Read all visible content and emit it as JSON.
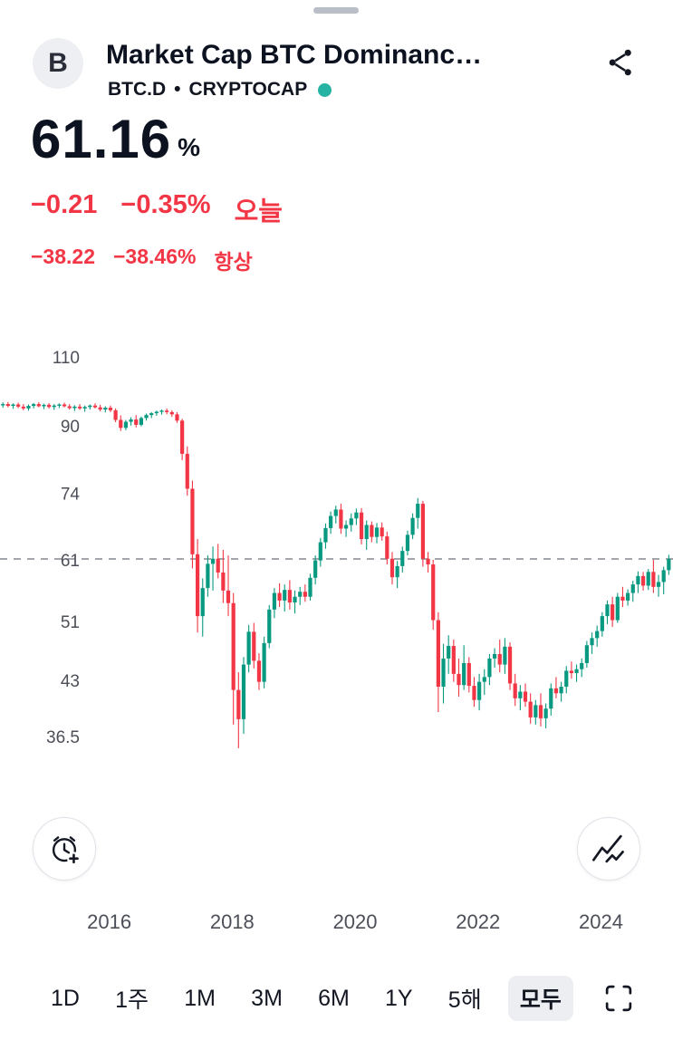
{
  "header": {
    "logo_letter": "B",
    "title": "Market Cap BTC Dominanc…",
    "symbol": "BTC.D",
    "separator": "•",
    "exchange": "CRYPTOCAP",
    "status_dot_color": "#26b3a3",
    "share_icon": "share-nodes-icon"
  },
  "quote": {
    "value": "61.16",
    "unit": "%",
    "change_color": "#f23645",
    "today": {
      "change": "−0.21",
      "change_pct": "−0.35%",
      "label": "오늘"
    },
    "alltime": {
      "change": "−38.22",
      "change_pct": "−38.46%",
      "label": "항상"
    }
  },
  "chart_data": {
    "type": "candlestick",
    "symbol": "BTC.D",
    "scale": "log",
    "interval_months": 1,
    "start_month": "2014-04",
    "y_ticks": [
      110,
      90,
      74,
      61,
      51,
      43,
      36.5
    ],
    "x_ticks": [
      2016,
      2018,
      2020,
      2022,
      2024
    ],
    "priceline": 61.16,
    "up_color": "#089981",
    "down_color": "#f23645",
    "candles": [
      [
        95.6,
        96.4,
        94.9,
        95.9
      ],
      [
        95.9,
        96.5,
        95.0,
        95.4
      ],
      [
        95.4,
        96.1,
        94.6,
        95.8
      ],
      [
        95.8,
        96.3,
        94.8,
        95.2
      ],
      [
        95.2,
        95.9,
        94.2,
        94.7
      ],
      [
        94.7,
        95.8,
        94.1,
        95.4
      ],
      [
        95.4,
        96.2,
        94.7,
        95.9
      ],
      [
        95.9,
        96.4,
        95.0,
        95.3
      ],
      [
        95.3,
        96.0,
        94.5,
        95.7
      ],
      [
        95.7,
        96.2,
        94.7,
        95.1
      ],
      [
        95.1,
        95.9,
        94.3,
        95.5
      ],
      [
        95.5,
        96.1,
        94.8,
        95.8
      ],
      [
        95.8,
        96.3,
        95.0,
        95.3
      ],
      [
        95.3,
        95.9,
        94.4,
        94.8
      ],
      [
        94.8,
        95.6,
        94.0,
        95.2
      ],
      [
        95.2,
        95.9,
        94.3,
        94.7
      ],
      [
        94.7,
        95.5,
        93.8,
        95.1
      ],
      [
        95.1,
        95.8,
        94.4,
        95.5
      ],
      [
        95.5,
        96.1,
        94.7,
        95.0
      ],
      [
        95.0,
        95.7,
        93.9,
        94.4
      ],
      [
        94.4,
        95.3,
        93.6,
        94.9
      ],
      [
        94.9,
        95.5,
        93.7,
        94.2
      ],
      [
        94.2,
        94.7,
        91.0,
        91.6
      ],
      [
        91.6,
        92.8,
        88.7,
        89.5
      ],
      [
        89.5,
        91.6,
        88.9,
        91.1
      ],
      [
        91.1,
        92.3,
        90.1,
        91.7
      ],
      [
        91.7,
        92.9,
        89.6,
        90.3
      ],
      [
        90.3,
        92.5,
        89.9,
        92.1
      ],
      [
        92.1,
        93.3,
        91.4,
        92.9
      ],
      [
        92.9,
        93.7,
        92.1,
        93.4
      ],
      [
        93.4,
        94.1,
        92.7,
        93.8
      ],
      [
        93.8,
        94.4,
        93.0,
        94.1
      ],
      [
        94.1,
        94.7,
        93.1,
        93.7
      ],
      [
        93.7,
        94.2,
        92.4,
        93.1
      ],
      [
        93.1,
        93.7,
        90.8,
        91.4
      ],
      [
        91.4,
        91.9,
        81.5,
        83.0
      ],
      [
        83.0,
        84.8,
        73.5,
        75.0
      ],
      [
        75.0,
        76.8,
        59.5,
        62.0
      ],
      [
        62.0,
        64.8,
        49.4,
        51.8
      ],
      [
        51.8,
        57.8,
        48.8,
        56.2
      ],
      [
        56.2,
        61.8,
        54.8,
        60.3
      ],
      [
        60.3,
        63.4,
        55.8,
        61.2
      ],
      [
        61.2,
        63.9,
        57.8,
        58.8
      ],
      [
        58.8,
        62.8,
        53.8,
        55.8
      ],
      [
        55.8,
        61.8,
        51.8,
        53.8
      ],
      [
        53.8,
        55.4,
        37.8,
        41.8
      ],
      [
        41.8,
        44.0,
        35.3,
        38.4
      ],
      [
        38.4,
        46.0,
        36.8,
        45.0
      ],
      [
        45.0,
        50.5,
        44.0,
        49.5
      ],
      [
        49.5,
        50.8,
        44.5,
        45.5
      ],
      [
        45.5,
        46.5,
        41.8,
        42.8
      ],
      [
        42.8,
        48.8,
        42.0,
        47.9
      ],
      [
        47.9,
        53.5,
        47.2,
        52.8
      ],
      [
        52.8,
        56.2,
        51.5,
        55.4
      ],
      [
        55.4,
        57.0,
        53.2,
        54.2
      ],
      [
        54.2,
        56.8,
        52.5,
        55.9
      ],
      [
        55.9,
        57.5,
        52.8,
        53.9
      ],
      [
        53.9,
        55.8,
        52.2,
        54.8
      ],
      [
        54.8,
        56.4,
        53.5,
        55.6
      ],
      [
        55.6,
        56.8,
        54.0,
        54.8
      ],
      [
        54.8,
        58.6,
        54.2,
        57.9
      ],
      [
        57.9,
        61.8,
        56.8,
        60.9
      ],
      [
        60.9,
        65.0,
        59.8,
        64.2
      ],
      [
        64.2,
        67.8,
        63.0,
        66.9
      ],
      [
        66.9,
        70.2,
        65.8,
        69.3
      ],
      [
        69.3,
        71.4,
        67.8,
        70.6
      ],
      [
        70.6,
        71.8,
        65.8,
        66.8
      ],
      [
        66.8,
        68.4,
        65.2,
        67.5
      ],
      [
        67.5,
        69.8,
        66.2,
        68.8
      ],
      [
        68.8,
        70.8,
        67.5,
        70.0
      ],
      [
        70.0,
        70.9,
        63.8,
        64.8
      ],
      [
        64.8,
        68.4,
        62.8,
        67.5
      ],
      [
        67.5,
        68.2,
        64.2,
        65.2
      ],
      [
        65.2,
        67.9,
        64.0,
        67.0
      ],
      [
        67.0,
        68.0,
        64.5,
        65.3
      ],
      [
        65.3,
        66.2,
        60.2,
        61.2
      ],
      [
        61.2,
        62.4,
        56.8,
        58.0
      ],
      [
        58.0,
        60.8,
        56.2,
        59.9
      ],
      [
        59.9,
        63.4,
        58.8,
        62.6
      ],
      [
        62.6,
        66.4,
        61.8,
        65.6
      ],
      [
        65.6,
        69.8,
        64.8,
        68.9
      ],
      [
        68.9,
        73.0,
        66.8,
        71.8
      ],
      [
        71.8,
        72.4,
        59.8,
        61.2
      ],
      [
        61.2,
        62.4,
        58.8,
        60.2
      ],
      [
        60.2,
        61.0,
        49.8,
        51.2
      ],
      [
        51.2,
        52.4,
        39.2,
        42.2
      ],
      [
        42.2,
        47.8,
        40.2,
        45.8
      ],
      [
        45.8,
        49.0,
        43.8,
        47.5
      ],
      [
        47.5,
        48.4,
        42.8,
        43.8
      ],
      [
        43.8,
        45.8,
        41.0,
        42.4
      ],
      [
        42.4,
        47.6,
        41.8,
        45.2
      ],
      [
        45.2,
        46.0,
        41.5,
        42.3
      ],
      [
        42.3,
        43.4,
        39.8,
        40.6
      ],
      [
        40.6,
        43.8,
        39.4,
        42.8
      ],
      [
        42.8,
        44.4,
        41.2,
        43.4
      ],
      [
        43.4,
        46.4,
        42.4,
        45.8
      ],
      [
        45.8,
        47.2,
        44.6,
        46.4
      ],
      [
        46.4,
        48.4,
        44.0,
        45.0
      ],
      [
        45.0,
        48.6,
        43.8,
        47.4
      ],
      [
        47.4,
        48.0,
        41.8,
        42.6
      ],
      [
        42.6,
        43.8,
        39.9,
        40.8
      ],
      [
        40.8,
        42.4,
        39.4,
        41.6
      ],
      [
        41.6,
        42.6,
        39.8,
        40.4
      ],
      [
        40.4,
        41.4,
        37.9,
        38.6
      ],
      [
        38.6,
        40.6,
        37.8,
        40.0
      ],
      [
        40.0,
        41.4,
        37.6,
        38.5
      ],
      [
        38.5,
        40.2,
        37.4,
        39.6
      ],
      [
        39.6,
        42.6,
        38.8,
        42.0
      ],
      [
        42.0,
        43.4,
        40.8,
        41.4
      ],
      [
        41.4,
        42.8,
        40.4,
        42.2
      ],
      [
        42.2,
        44.8,
        41.4,
        44.2
      ],
      [
        44.2,
        45.4,
        43.2,
        43.9
      ],
      [
        43.9,
        45.0,
        42.8,
        44.4
      ],
      [
        44.4,
        45.8,
        43.4,
        45.2
      ],
      [
        45.2,
        48.2,
        44.6,
        47.6
      ],
      [
        47.6,
        49.4,
        46.4,
        48.6
      ],
      [
        48.6,
        50.4,
        47.4,
        49.6
      ],
      [
        49.6,
        52.4,
        48.8,
        51.8
      ],
      [
        51.8,
        54.2,
        50.6,
        53.6
      ],
      [
        53.6,
        54.8,
        50.2,
        51.2
      ],
      [
        51.2,
        55.4,
        50.8,
        54.8
      ],
      [
        54.8,
        56.4,
        53.2,
        54.2
      ],
      [
        54.2,
        56.0,
        53.4,
        55.4
      ],
      [
        55.4,
        57.4,
        54.0,
        56.8
      ],
      [
        56.8,
        59.0,
        55.4,
        58.2
      ],
      [
        58.2,
        58.9,
        55.8,
        56.6
      ],
      [
        56.6,
        59.4,
        55.9,
        58.9
      ],
      [
        58.9,
        61.0,
        55.4,
        56.4
      ],
      [
        56.4,
        58.4,
        54.8,
        57.2
      ],
      [
        57.2,
        59.8,
        55.2,
        59.2
      ],
      [
        59.2,
        61.9,
        58.4,
        61.16
      ]
    ]
  },
  "buttons": {
    "alert_icon": "alarm-clock-plus-icon",
    "style_icon": "line-chart-icon",
    "fullscreen_icon": "fullscreen-icon"
  },
  "ranges": {
    "items": [
      "1D",
      "1주",
      "1M",
      "3M",
      "6M",
      "1Y",
      "5해",
      "모두"
    ],
    "selected": "모두"
  }
}
